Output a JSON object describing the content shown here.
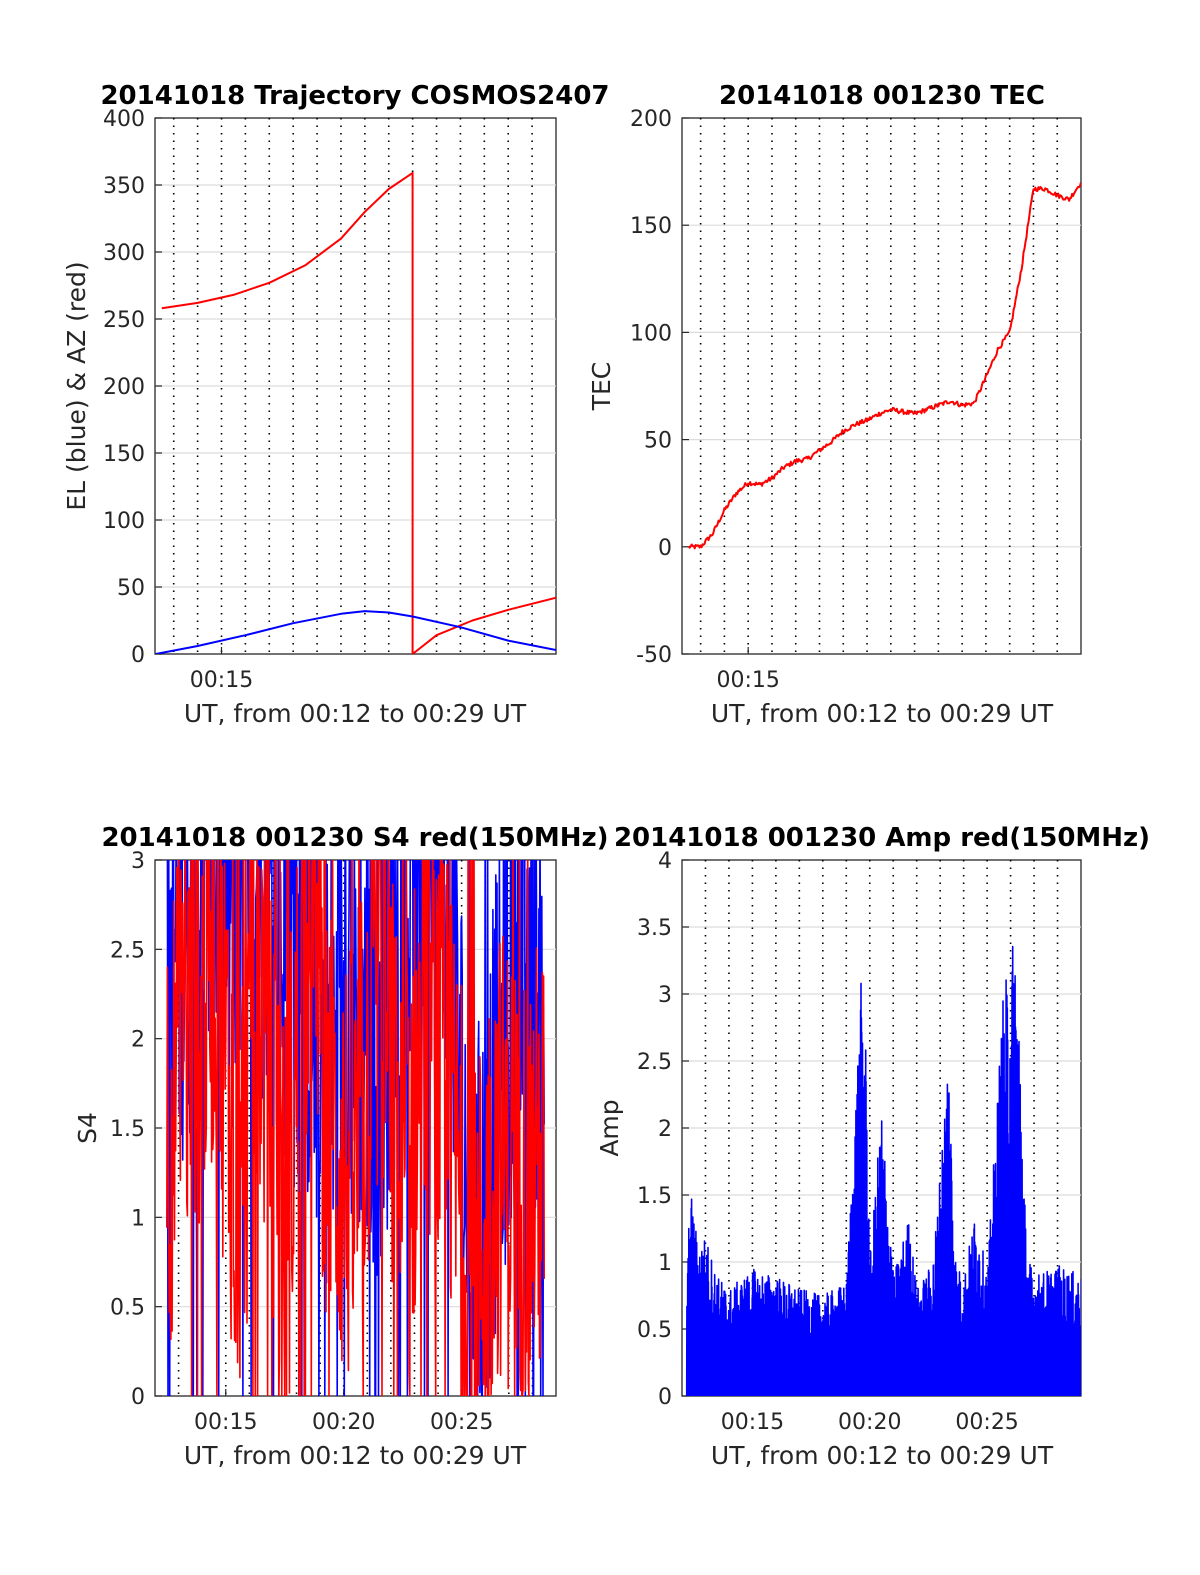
{
  "chart_data": [
    {
      "type": "line",
      "title": "20141018 Trajectory COSMOS2407",
      "xlabel": "UT, from 00:12 to 00:29 UT",
      "ylabel": "EL (blue) & AZ (red)",
      "xlim": [
        "00:12:13",
        "00:29:00"
      ],
      "ylim": [
        0,
        400
      ],
      "yticks": [
        0,
        50,
        100,
        150,
        200,
        250,
        300,
        350,
        400
      ],
      "xtick_labels": [
        "00:15"
      ],
      "grid": "dotted vertical, solid horizontal",
      "colors": {
        "az": "#ff0000",
        "el": "#0000ff"
      },
      "series": [
        {
          "color": "red",
          "x": [
            "00:12:30",
            "00:14:00",
            "00:15:30",
            "00:17:00",
            "00:18:30",
            "00:20:00",
            "00:21:00",
            "00:22:00",
            "00:23:00",
            "00:23:00",
            "00:24:00",
            "00:25:30",
            "00:27:00",
            "00:29:00"
          ],
          "values": [
            258,
            262,
            268,
            277,
            290,
            310,
            330,
            347,
            359,
            0,
            14,
            25,
            33,
            42
          ]
        },
        {
          "color": "blue",
          "x": [
            "00:12:15",
            "00:14:00",
            "00:16:00",
            "00:18:00",
            "00:20:00",
            "00:21:00",
            "00:22:00",
            "00:23:00",
            "00:25:00",
            "00:27:00",
            "00:29:00"
          ],
          "values": [
            0,
            6,
            14,
            23,
            30,
            32,
            31,
            28,
            20,
            10,
            3
          ]
        }
      ]
    },
    {
      "type": "line",
      "title": "20141018 001230 TEC",
      "xlabel": "UT, from 00:12 to 00:29 UT",
      "ylabel": "TEC",
      "xlim": [
        "00:12:13",
        "00:29:00"
      ],
      "ylim": [
        -50,
        200
      ],
      "yticks": [
        -50,
        0,
        50,
        100,
        150,
        200
      ],
      "xtick_labels": [
        "00:15"
      ],
      "grid": "dotted vertical, solid horizontal",
      "series": [
        {
          "color": "red",
          "x": [
            "00:12:30",
            "00:13:00",
            "00:13:30",
            "00:14:00",
            "00:14:30",
            "00:15:00",
            "00:15:30",
            "00:16:00",
            "00:16:30",
            "00:17:00",
            "00:17:30",
            "00:18:00",
            "00:18:30",
            "00:19:00",
            "00:19:30",
            "00:20:00",
            "00:20:30",
            "00:21:00",
            "00:21:30",
            "00:22:00",
            "00:22:30",
            "00:23:00",
            "00:23:30",
            "00:24:00",
            "00:24:30",
            "00:25:00",
            "00:25:30",
            "00:26:00",
            "00:26:30",
            "00:27:00",
            "00:27:30",
            "00:28:00",
            "00:28:30",
            "00:29:00"
          ],
          "values": [
            0,
            0,
            6,
            17,
            25,
            30,
            29,
            32,
            37,
            40,
            41,
            45,
            49,
            54,
            57,
            59,
            62,
            64,
            63,
            62,
            64,
            66,
            68,
            66,
            67,
            79,
            92,
            100,
            130,
            167,
            167,
            164,
            162,
            170
          ]
        }
      ]
    },
    {
      "type": "line",
      "title": "20141018 001230 S4 red(150MHz)",
      "xlabel": "UT, from 00:12 to 00:29 UT",
      "ylabel": "S4",
      "xlim": [
        "00:12:00",
        "00:29:00"
      ],
      "ylim": [
        0,
        3
      ],
      "yticks": [
        0,
        0.5,
        1,
        1.5,
        2,
        2.5,
        3
      ],
      "xtick_labels": [
        "00:15",
        "00:20",
        "00:25"
      ],
      "grid": "dotted vertical, solid horizontal",
      "series": [
        {
          "color": "blue",
          "x": [
            "00:12:30",
            "00:13:30",
            "00:14:30",
            "00:15:30",
            "00:16:30",
            "00:17:30",
            "00:18:30",
            "00:19:30",
            "00:20:30",
            "00:21:30",
            "00:22:30",
            "00:23:30",
            "00:24:30",
            "00:25:30",
            "00:26:30",
            "00:27:30",
            "00:28:30"
          ],
          "values": [
            2.4,
            2.7,
            2.8,
            2.6,
            2.9,
            2.5,
            2.3,
            1.8,
            2.2,
            1.9,
            2.8,
            2.6,
            2.7,
            0.6,
            1.7,
            2.5,
            2.2
          ]
        },
        {
          "color": "red",
          "x": [
            "00:12:30",
            "00:13:30",
            "00:14:30",
            "00:15:30",
            "00:16:30",
            "00:17:30",
            "00:18:30",
            "00:19:30",
            "00:20:30",
            "00:21:30",
            "00:22:30",
            "00:23:30",
            "00:24:30",
            "00:25:30",
            "00:26:30",
            "00:27:30",
            "00:28:30"
          ],
          "values": [
            1.5,
            2.0,
            2.6,
            1.2,
            2.3,
            0.9,
            2.8,
            1.4,
            1.2,
            2.5,
            1.1,
            2.2,
            1.6,
            0.5,
            1.4,
            1.2,
            1.3
          ]
        }
      ]
    },
    {
      "type": "line",
      "title": "20141018 001230 Amp red(150MHz)",
      "xlabel": "UT, from 00:12 to 00:29 UT",
      "ylabel": "Amp",
      "xlim": [
        "00:12:00",
        "00:29:00"
      ],
      "ylim": [
        0,
        4
      ],
      "yticks": [
        0,
        0.5,
        1,
        1.5,
        2,
        2.5,
        3,
        3.5,
        4
      ],
      "xtick_labels": [
        "00:15",
        "00:20",
        "00:25"
      ],
      "grid": "dotted vertical, solid horizontal",
      "series": [
        {
          "color": "blue",
          "x": [
            "00:12:10",
            "00:12:20",
            "00:12:40",
            "00:13:00",
            "00:13:30",
            "00:14:00",
            "00:15:00",
            "00:16:00",
            "00:17:00",
            "00:18:00",
            "00:19:00",
            "00:19:40",
            "00:19:50",
            "00:20:00",
            "00:20:30",
            "00:21:00",
            "00:21:40",
            "00:22:00",
            "00:22:40",
            "00:23:00",
            "00:23:20",
            "00:23:40",
            "00:24:00",
            "00:24:30",
            "00:25:00",
            "00:25:40",
            "00:26:00",
            "00:26:10",
            "00:26:20",
            "00:26:40",
            "00:27:00",
            "00:28:00",
            "00:29:00"
          ],
          "values": [
            0.6,
            1.58,
            1.15,
            1.2,
            0.9,
            0.8,
            0.95,
            0.9,
            0.8,
            0.75,
            0.85,
            3.27,
            2.6,
            1.0,
            2.2,
            0.9,
            1.35,
            0.8,
            1.0,
            1.7,
            2.7,
            1.0,
            0.9,
            1.4,
            0.9,
            3.0,
            3.3,
            3.6,
            3.05,
            1.1,
            0.9,
            0.98,
            0.9
          ]
        }
      ]
    }
  ]
}
